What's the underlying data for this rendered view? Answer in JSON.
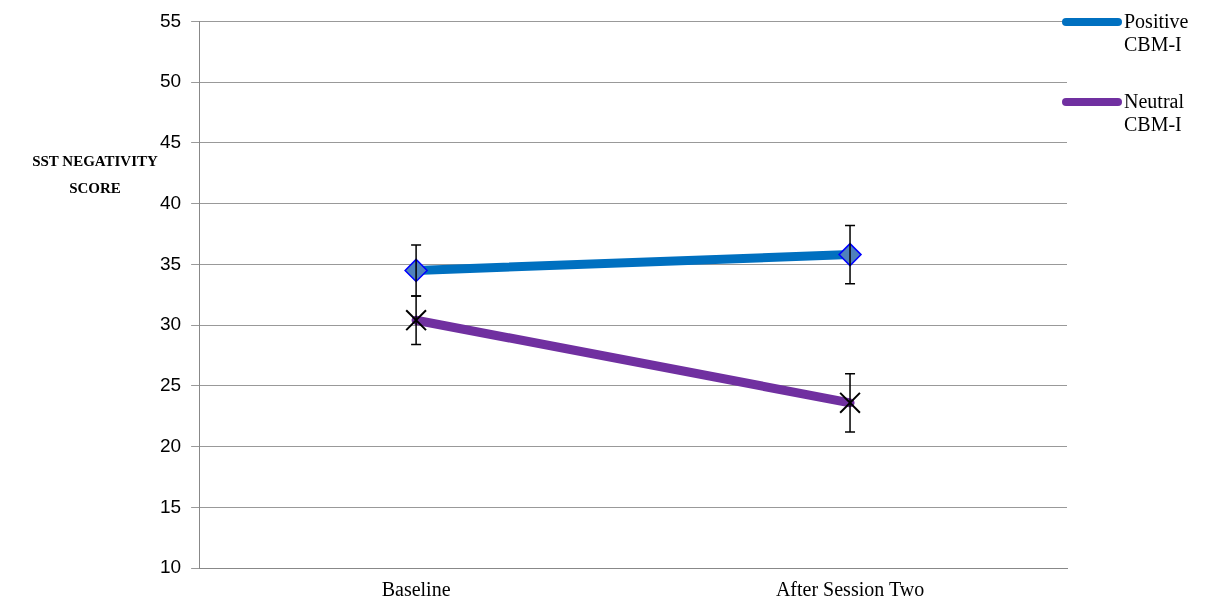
{
  "chart_data": {
    "type": "line",
    "ylabel": "SST NEGATIVITY SCORE",
    "categories": [
      "Baseline",
      "After Session Two"
    ],
    "series": [
      {
        "name": "Positive CBM-I",
        "color": "#0070c0",
        "values": [
          34.5,
          35.8
        ],
        "errors": [
          2.1,
          2.4
        ],
        "marker": "diamond"
      },
      {
        "name": "Neutral CBM-I",
        "color": "#7030a0",
        "values": [
          30.4,
          23.6
        ],
        "errors": [
          2.0,
          2.4
        ],
        "marker": "cross"
      }
    ],
    "ylim": [
      10,
      55
    ],
    "yticks": [
      10,
      15,
      20,
      25,
      30,
      35,
      40,
      45,
      50,
      55
    ],
    "grid": "y",
    "legend": "top right"
  }
}
